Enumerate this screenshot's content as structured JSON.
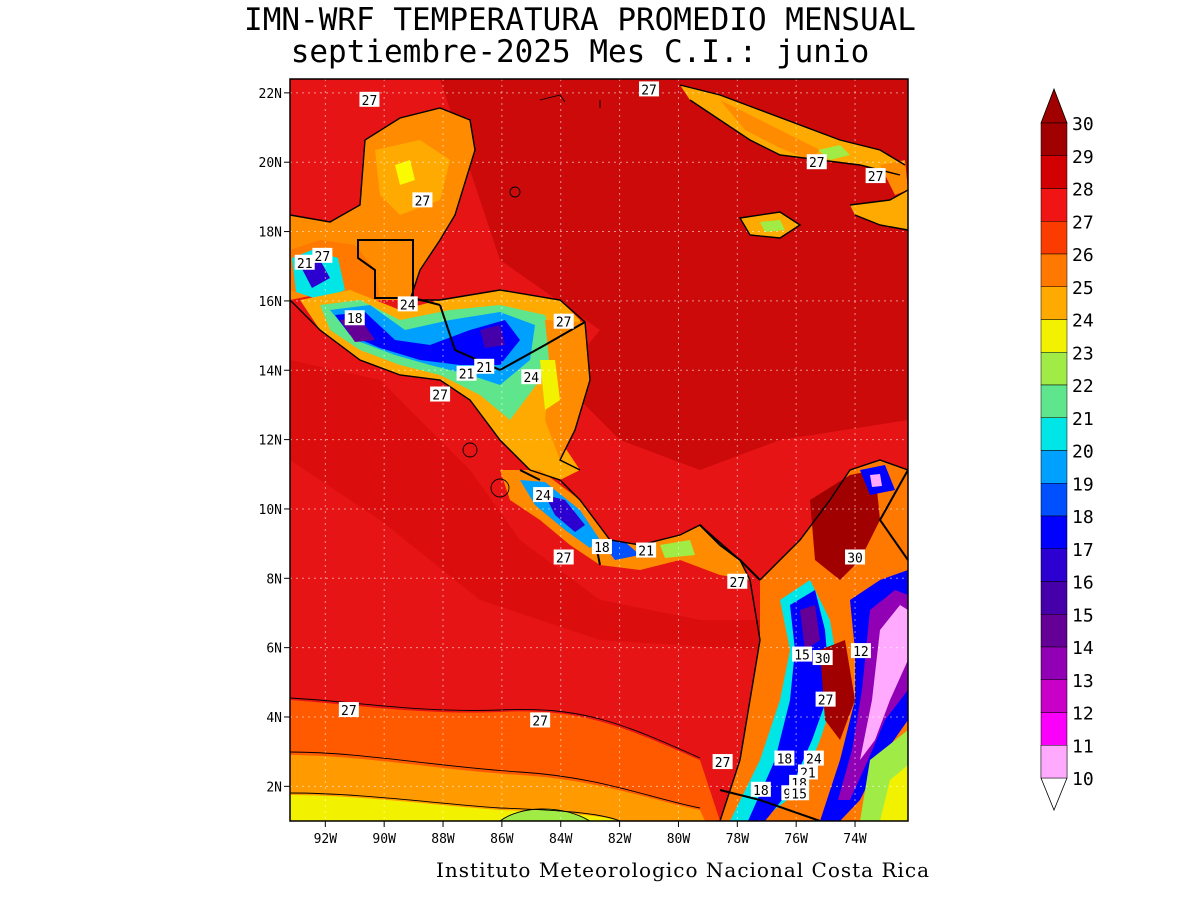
{
  "title": {
    "line1": "IMN-WRF  TEMPERATURA PROMEDIO MENSUAL",
    "line2": "septiembre-2025 Mes C.I.: junio"
  },
  "credit": "Instituto Meteorologico Nacional Costa Rica",
  "map": {
    "lon_range": [
      -93.2,
      -72.2
    ],
    "lat_range": [
      1.0,
      22.4
    ],
    "lon_ticks": [
      {
        "value": -92,
        "label": "92W"
      },
      {
        "value": -90,
        "label": "90W"
      },
      {
        "value": -88,
        "label": "88W"
      },
      {
        "value": -86,
        "label": "86W"
      },
      {
        "value": -84,
        "label": "84W"
      },
      {
        "value": -82,
        "label": "82W"
      },
      {
        "value": -80,
        "label": "80W"
      },
      {
        "value": -78,
        "label": "78W"
      },
      {
        "value": -76,
        "label": "76W"
      },
      {
        "value": -74,
        "label": "74W"
      }
    ],
    "lat_ticks": [
      {
        "value": 22,
        "label": "22N"
      },
      {
        "value": 20,
        "label": "20N"
      },
      {
        "value": 18,
        "label": "18N"
      },
      {
        "value": 16,
        "label": "16N"
      },
      {
        "value": 14,
        "label": "14N"
      },
      {
        "value": 12,
        "label": "12N"
      },
      {
        "value": 10,
        "label": "10N"
      },
      {
        "value": 8,
        "label": "8N"
      },
      {
        "value": 6,
        "label": "6N"
      },
      {
        "value": 4,
        "label": "4N"
      },
      {
        "value": 2,
        "label": "2N"
      }
    ],
    "contour_labels": [
      {
        "lon": -90.5,
        "lat": 21.8,
        "text": "27"
      },
      {
        "lon": -81.0,
        "lat": 22.1,
        "text": "27"
      },
      {
        "lon": -75.3,
        "lat": 20.0,
        "text": "27"
      },
      {
        "lon": -73.3,
        "lat": 19.6,
        "text": "27"
      },
      {
        "lon": -88.7,
        "lat": 18.9,
        "text": "27"
      },
      {
        "lon": -92.1,
        "lat": 17.3,
        "text": "27"
      },
      {
        "lon": -92.7,
        "lat": 17.1,
        "text": "21"
      },
      {
        "lon": -89.2,
        "lat": 15.9,
        "text": "24"
      },
      {
        "lon": -91.0,
        "lat": 15.5,
        "text": "18"
      },
      {
        "lon": -83.9,
        "lat": 15.4,
        "text": "27"
      },
      {
        "lon": -86.6,
        "lat": 14.1,
        "text": "21"
      },
      {
        "lon": -87.2,
        "lat": 13.9,
        "text": "21"
      },
      {
        "lon": -85.0,
        "lat": 13.8,
        "text": "24"
      },
      {
        "lon": -88.1,
        "lat": 13.3,
        "text": "27"
      },
      {
        "lon": -84.6,
        "lat": 10.4,
        "text": "24"
      },
      {
        "lon": -82.6,
        "lat": 8.9,
        "text": "18"
      },
      {
        "lon": -81.1,
        "lat": 8.8,
        "text": "21"
      },
      {
        "lon": -83.9,
        "lat": 8.6,
        "text": "27"
      },
      {
        "lon": -74.0,
        "lat": 8.6,
        "text": "30"
      },
      {
        "lon": -78.0,
        "lat": 7.9,
        "text": "27"
      },
      {
        "lon": -75.8,
        "lat": 5.8,
        "text": "15"
      },
      {
        "lon": -75.1,
        "lat": 5.7,
        "text": "30"
      },
      {
        "lon": -73.8,
        "lat": 5.9,
        "text": "12"
      },
      {
        "lon": -75.0,
        "lat": 4.5,
        "text": "27"
      },
      {
        "lon": -91.2,
        "lat": 4.2,
        "text": "27"
      },
      {
        "lon": -84.7,
        "lat": 3.9,
        "text": "27"
      },
      {
        "lon": -78.5,
        "lat": 2.7,
        "text": "27"
      },
      {
        "lon": -76.4,
        "lat": 2.8,
        "text": "18"
      },
      {
        "lon": -75.4,
        "lat": 2.8,
        "text": "24"
      },
      {
        "lon": -75.6,
        "lat": 2.4,
        "text": "21"
      },
      {
        "lon": -75.9,
        "lat": 2.1,
        "text": "18"
      },
      {
        "lon": -77.2,
        "lat": 1.9,
        "text": "18"
      },
      {
        "lon": -76.3,
        "lat": 1.8,
        "text": "9"
      },
      {
        "lon": -75.9,
        "lat": 1.8,
        "text": "15"
      }
    ]
  },
  "colorbar": {
    "labels": [
      "30",
      "29",
      "28",
      "27",
      "26",
      "25",
      "24",
      "23",
      "22",
      "21",
      "20",
      "19",
      "18",
      "17",
      "16",
      "15",
      "14",
      "13",
      "12",
      "11",
      "10"
    ],
    "colors": [
      "#a00000",
      "#d20000",
      "#f01414",
      "#fa3c00",
      "#ff7800",
      "#ffaa00",
      "#f2f200",
      "#a0eb46",
      "#5fe68c",
      "#00e6e6",
      "#00a0ff",
      "#0050ff",
      "#0000ff",
      "#2d00d2",
      "#4600aa",
      "#650096",
      "#9100b4",
      "#c800c8",
      "#fa00fa",
      "#ff50ff",
      "#ffaaff"
    ],
    "over_color": "#a00000"
  },
  "palette": {
    "ocean_warm": "#e60e0e",
    "ocean_hot": "#cc0000",
    "ocean_pacific_south": "#ff6a00",
    "land_orange": "#ff8c00"
  }
}
